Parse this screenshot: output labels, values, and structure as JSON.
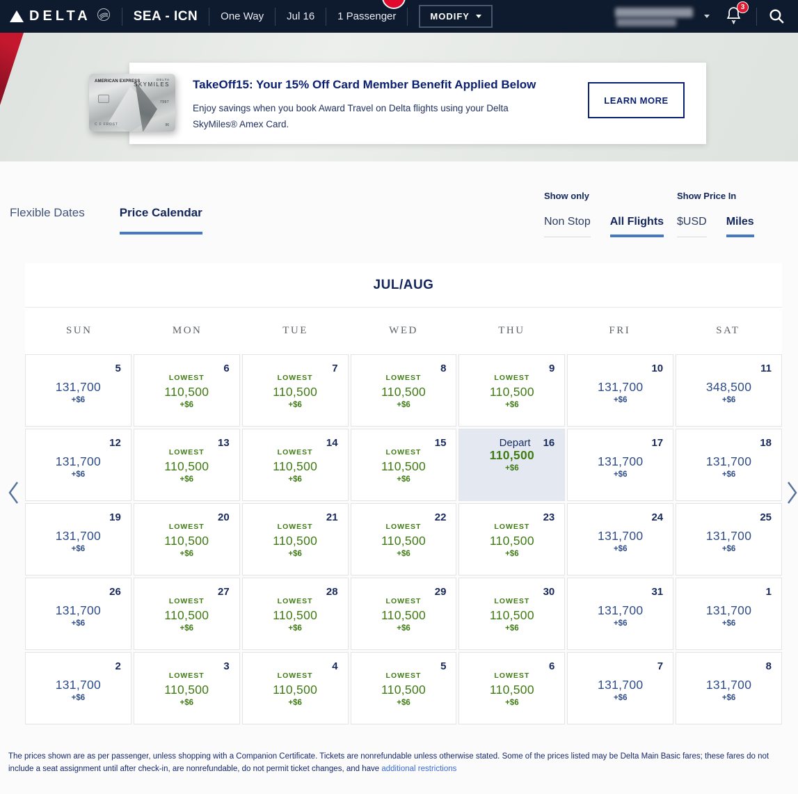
{
  "nav": {
    "brand": "DELTA",
    "route": "SEA - ICN",
    "trip_type": "One Way",
    "date": "Jul 16",
    "passengers": "1 Passenger",
    "modify_label": "MODIFY",
    "notification_count": "3"
  },
  "promo_banner": {
    "title": "TakeOff15: Your 15% Off Card Member Benefit Applied Below",
    "body": "Enjoy savings when you book Award Travel on Delta flights using your Delta SkyMiles® Amex Card.",
    "cta_label": "LEARN MORE",
    "card": {
      "issuer": "AMERICAN EXPRESS",
      "brand_top": "DELTA",
      "brand_main": "SKYMILES",
      "contactless_digits": "7997",
      "holder": "C F FROST",
      "corner": "96"
    }
  },
  "tabs": [
    {
      "label": "Flexible Dates",
      "active": false
    },
    {
      "label": "Price Calendar",
      "active": true
    }
  ],
  "filters": {
    "show_only_label": "Show only",
    "show_only_options": [
      {
        "label": "Non Stop",
        "active": false
      },
      {
        "label": "All Flights",
        "active": true
      }
    ],
    "price_in_label": "Show Price In",
    "price_in_options": [
      {
        "label": "$USD",
        "active": false
      },
      {
        "label": "Miles",
        "active": true
      }
    ]
  },
  "calendar": {
    "month_label": "JUL/AUG",
    "day_headers": [
      "SUN",
      "MON",
      "TUE",
      "WED",
      "THU",
      "FRI",
      "SAT"
    ],
    "lowest_label": "LOWEST",
    "depart_label": "Depart",
    "weeks": [
      [
        {
          "day": "5",
          "price": "131,700",
          "fee": "+$6",
          "lowest": false
        },
        {
          "day": "6",
          "price": "110,500",
          "fee": "+$6",
          "lowest": true
        },
        {
          "day": "7",
          "price": "110,500",
          "fee": "+$6",
          "lowest": true
        },
        {
          "day": "8",
          "price": "110,500",
          "fee": "+$6",
          "lowest": true
        },
        {
          "day": "9",
          "price": "110,500",
          "fee": "+$6",
          "lowest": true
        },
        {
          "day": "10",
          "price": "131,700",
          "fee": "+$6",
          "lowest": false
        },
        {
          "day": "11",
          "price": "348,500",
          "fee": "+$6",
          "lowest": false
        }
      ],
      [
        {
          "day": "12",
          "price": "131,700",
          "fee": "+$6",
          "lowest": false
        },
        {
          "day": "13",
          "price": "110,500",
          "fee": "+$6",
          "lowest": true
        },
        {
          "day": "14",
          "price": "110,500",
          "fee": "+$6",
          "lowest": true
        },
        {
          "day": "15",
          "price": "110,500",
          "fee": "+$6",
          "lowest": true
        },
        {
          "day": "16",
          "price": "110,500",
          "fee": "+$6",
          "lowest": false,
          "depart": true
        },
        {
          "day": "17",
          "price": "131,700",
          "fee": "+$6",
          "lowest": false
        },
        {
          "day": "18",
          "price": "131,700",
          "fee": "+$6",
          "lowest": false
        }
      ],
      [
        {
          "day": "19",
          "price": "131,700",
          "fee": "+$6",
          "lowest": false
        },
        {
          "day": "20",
          "price": "110,500",
          "fee": "+$6",
          "lowest": true
        },
        {
          "day": "21",
          "price": "110,500",
          "fee": "+$6",
          "lowest": true
        },
        {
          "day": "22",
          "price": "110,500",
          "fee": "+$6",
          "lowest": true
        },
        {
          "day": "23",
          "price": "110,500",
          "fee": "+$6",
          "lowest": true
        },
        {
          "day": "24",
          "price": "131,700",
          "fee": "+$6",
          "lowest": false
        },
        {
          "day": "25",
          "price": "131,700",
          "fee": "+$6",
          "lowest": false
        }
      ],
      [
        {
          "day": "26",
          "price": "131,700",
          "fee": "+$6",
          "lowest": false
        },
        {
          "day": "27",
          "price": "110,500",
          "fee": "+$6",
          "lowest": true
        },
        {
          "day": "28",
          "price": "110,500",
          "fee": "+$6",
          "lowest": true
        },
        {
          "day": "29",
          "price": "110,500",
          "fee": "+$6",
          "lowest": true
        },
        {
          "day": "30",
          "price": "110,500",
          "fee": "+$6",
          "lowest": true
        },
        {
          "day": "31",
          "price": "131,700",
          "fee": "+$6",
          "lowest": false
        },
        {
          "day": "1",
          "price": "131,700",
          "fee": "+$6",
          "lowest": false
        }
      ],
      [
        {
          "day": "2",
          "price": "131,700",
          "fee": "+$6",
          "lowest": false
        },
        {
          "day": "3",
          "price": "110,500",
          "fee": "+$6",
          "lowest": true
        },
        {
          "day": "4",
          "price": "110,500",
          "fee": "+$6",
          "lowest": true
        },
        {
          "day": "5",
          "price": "110,500",
          "fee": "+$6",
          "lowest": true
        },
        {
          "day": "6",
          "price": "110,500",
          "fee": "+$6",
          "lowest": true
        },
        {
          "day": "7",
          "price": "131,700",
          "fee": "+$6",
          "lowest": false
        },
        {
          "day": "8",
          "price": "131,700",
          "fee": "+$6",
          "lowest": false
        }
      ]
    ]
  },
  "footer": {
    "text_before_link": "The prices shown are as per passenger, unless shopping with a Companion Certificate. Tickets are nonrefundable unless otherwise stated. Some of the prices listed may be Delta Main Basic fares; these fares do not include a seat assignment until after check-in, are nonrefundable, do not permit ticket changes, and have ",
    "link_label": "additional restrictions"
  },
  "colors": {
    "navy_bar": "#0e1a2d",
    "navy_text": "#13265c",
    "price_blue": "#2e4c89",
    "lowest_green": "#3f7b13",
    "tab_accent": "#4778c2",
    "link_blue": "#3a6bd8",
    "badge_red": "#e11931",
    "depart_bg": "#e4e9f1",
    "hero_red": "#c5182f"
  }
}
